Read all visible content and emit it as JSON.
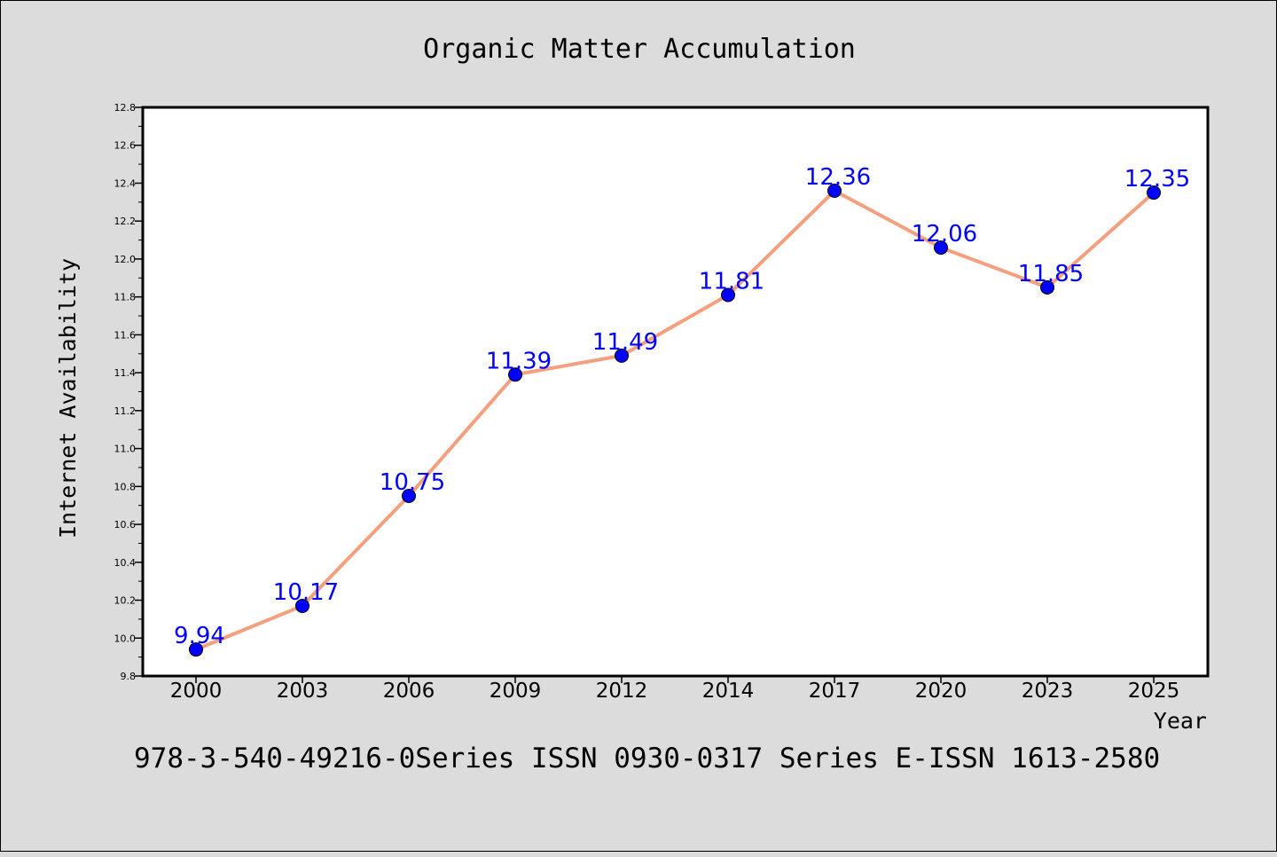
{
  "chart_data": {
    "type": "line",
    "title": "Organic Matter Accumulation",
    "xlabel": "Year",
    "ylabel": "Internet Availability",
    "categories": [
      "2000",
      "2003",
      "2006",
      "2009",
      "2012",
      "2014",
      "2017",
      "2020",
      "2023",
      "2025"
    ],
    "series": [
      {
        "values": [
          9.94,
          10.17,
          10.75,
          11.39,
          11.49,
          11.81,
          12.36,
          12.06,
          11.85,
          12.35
        ],
        "labels": [
          "9.94",
          "10.17",
          "10.75",
          "11.39",
          "11.49",
          "11.81",
          "12.36",
          "12.06",
          "11.85",
          "12.35"
        ]
      }
    ],
    "ylim": [
      9.8,
      12.8
    ],
    "yticks": [
      "9.8",
      "10.0",
      "10.2",
      "10.4",
      "10.6",
      "10.8",
      "11.0",
      "11.2",
      "11.4",
      "11.6",
      "11.8",
      "12.0",
      "12.2",
      "12.4",
      "12.6",
      "12.8"
    ],
    "grid": false,
    "legend": "none",
    "line_color": "#f4a07e",
    "marker_color": "#0000ff",
    "label_color": "#0000ff"
  },
  "footer": "978-3-540-49216-0Series ISSN 0930-0317 Series E-ISSN 1613-2580"
}
